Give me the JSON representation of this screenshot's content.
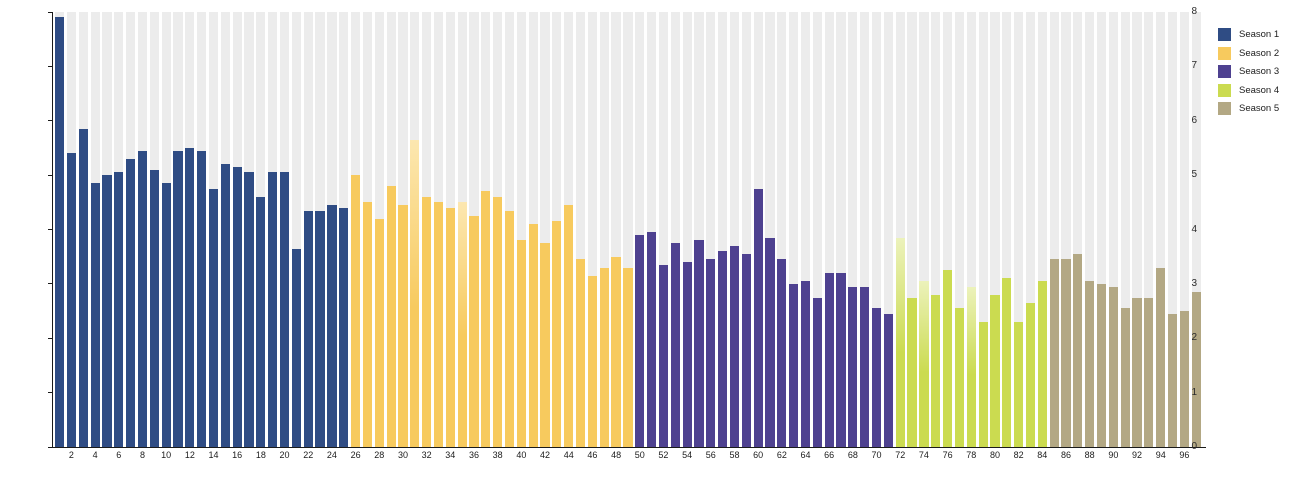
{
  "chart_data": {
    "type": "bar",
    "title": "",
    "xlabel": "",
    "ylabel": "",
    "ylim": [
      0,
      8
    ],
    "y_ticks": [
      0,
      1,
      2,
      3,
      4,
      5,
      6,
      7,
      8
    ],
    "x_tick_labels": [
      2,
      4,
      6,
      8,
      10,
      12,
      14,
      16,
      18,
      20,
      22,
      24,
      26,
      28,
      30,
      32,
      34,
      36,
      38,
      40,
      42,
      44,
      46,
      48,
      50,
      52,
      54,
      56,
      58,
      60,
      62,
      64,
      66,
      68,
      70,
      72,
      74,
      76,
      78,
      80,
      82,
      84,
      86,
      88,
      90,
      92,
      94,
      96
    ],
    "grid": "vertical-background-stripes",
    "legend_position": "top-right",
    "background_stripe_color": "#ececec",
    "axis_color": "#1a1a1a",
    "series": [
      {
        "name": "Season 1",
        "color": "#2f4c84",
        "fade_color": "#aebbd6",
        "start_episode": 1,
        "end_episode": 25,
        "values": [
          7.9,
          5.4,
          5.85,
          4.85,
          5.0,
          5.05,
          5.3,
          5.45,
          5.1,
          4.85,
          5.45,
          5.5,
          5.45,
          4.75,
          5.2,
          5.15,
          5.05,
          4.6,
          5.05,
          5.05,
          3.65,
          4.35,
          4.35,
          4.45,
          4.4
        ]
      },
      {
        "name": "Season 2",
        "color": "#f7ca5e",
        "fade_color": "#fce7b0",
        "start_episode": 26,
        "end_episode": 49,
        "values": [
          5.0,
          4.5,
          4.2,
          4.8,
          4.45,
          5.65,
          4.6,
          4.5,
          4.4,
          4.5,
          4.25,
          4.7,
          4.6,
          4.35,
          3.8,
          4.1,
          3.75,
          4.15,
          4.45,
          3.45,
          3.15,
          3.3,
          3.5,
          3.3
        ]
      },
      {
        "name": "Season 3",
        "color": "#4e4190",
        "fade_color": "#b5aed6",
        "start_episode": 50,
        "end_episode": 71,
        "values": [
          3.9,
          3.95,
          3.35,
          3.75,
          3.4,
          3.8,
          3.45,
          3.6,
          3.7,
          3.55,
          4.75,
          3.85,
          3.45,
          3.0,
          3.05,
          2.75,
          3.2,
          3.2,
          2.95,
          2.95,
          2.55,
          2.45
        ]
      },
      {
        "name": "Season 4",
        "color": "#cbdb50",
        "fade_color": "#ecf2bb",
        "start_episode": 72,
        "end_episode": 84,
        "values": [
          3.85,
          2.75,
          3.05,
          2.8,
          3.25,
          2.55,
          2.95,
          2.3,
          2.8,
          3.1,
          2.3,
          2.65,
          3.05
        ]
      },
      {
        "name": "Season 5",
        "color": "#b3a884",
        "fade_color": "#ddd7c5",
        "start_episode": 85,
        "end_episode": 97,
        "values": [
          3.45,
          3.45,
          3.55,
          3.05,
          3.0,
          2.95,
          2.55,
          2.75,
          2.75,
          3.3,
          2.45,
          2.5,
          2.85
        ]
      }
    ],
    "fade_top_episodes": [
      31,
      35,
      72,
      74,
      78
    ]
  },
  "legend": {
    "items": [
      {
        "label": "Season 1",
        "color": "#2f4c84"
      },
      {
        "label": "Season 2",
        "color": "#f7ca5e"
      },
      {
        "label": "Season 3",
        "color": "#4e4190"
      },
      {
        "label": "Season 4",
        "color": "#cbdb50"
      },
      {
        "label": "Season 5",
        "color": "#b3a884"
      }
    ]
  }
}
